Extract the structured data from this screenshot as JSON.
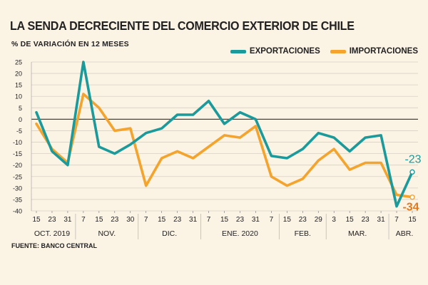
{
  "header": {
    "title": "LA SENDA DECRECIENTE DEL COMERCIO EXTERIOR DE CHILE",
    "subtitle": "% DE VARIACIÓN EN 12 MESES"
  },
  "source": "FUENTE: BANCO CENTRAL",
  "colors": {
    "exportaciones": "#1a9a9a",
    "importaciones": "#f4a32c",
    "grid": "#d8d2c6",
    "zero": "#444444",
    "background": "#fbf3e4"
  },
  "chart_data": {
    "type": "line",
    "title": "LA SENDA DECRECIENTE DEL COMERCIO EXTERIOR DE CHILE",
    "ylabel": "% DE VARIACIÓN EN 12 MESES",
    "xlabel": "",
    "ylim": [
      -40,
      25
    ],
    "yticks": [
      "25",
      "20",
      "15",
      "10",
      "5",
      "0",
      "-5",
      "-10",
      "-15",
      "-20",
      "-25",
      "-30",
      "-35",
      "-40"
    ],
    "categories": [
      "15",
      "23",
      "31",
      "7",
      "15",
      "23",
      "30",
      "7",
      "15",
      "23",
      "31",
      "7",
      "15",
      "23",
      "31",
      "7",
      "15",
      "23",
      "29",
      "3",
      "15",
      "23",
      "31",
      "7",
      "15"
    ],
    "months": [
      {
        "label": "OCT. 2019",
        "start": 0,
        "end": 2
      },
      {
        "label": "NOV.",
        "start": 3,
        "end": 6
      },
      {
        "label": "DIC.",
        "start": 7,
        "end": 10
      },
      {
        "label": "ENE. 2020",
        "start": 11,
        "end": 15
      },
      {
        "label": "FEB.",
        "start": 16,
        "end": 18
      },
      {
        "label": "MAR.",
        "start": 19,
        "end": 22
      },
      {
        "label": "ABR.",
        "start": 23,
        "end": 24
      }
    ],
    "series": [
      {
        "name": "EXPORTACIONES",
        "color": "#1a9a9a",
        "values": [
          3,
          -14,
          -20,
          25,
          -12,
          -15,
          -11,
          -6,
          -4,
          2,
          2,
          8,
          -2,
          3,
          0,
          -16,
          -17,
          -13,
          -6,
          -8,
          -14,
          -8,
          -7,
          -38,
          -23
        ],
        "end_label": "-23"
      },
      {
        "name": "IMPORTACIONES",
        "color": "#f4a32c",
        "values": [
          -2,
          -13,
          -19,
          11,
          5,
          -5,
          -4,
          -29,
          -17,
          -14,
          -17,
          -12,
          -7,
          -8,
          -3,
          -25,
          -29,
          -26,
          -18,
          -13,
          -22,
          -19,
          -19,
          -33,
          -34
        ],
        "end_label": "-34"
      }
    ],
    "grid": true,
    "legend": "top-right"
  }
}
